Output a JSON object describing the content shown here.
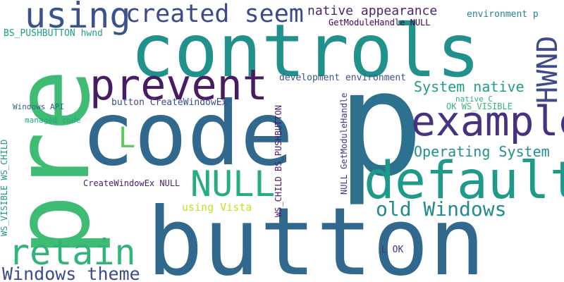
{
  "words": [
    {
      "text": "button",
      "color": "#31688e"
    },
    {
      "text": "code",
      "color": "#30688e"
    },
    {
      "text": "p",
      "color": "#2c728e"
    },
    {
      "text": "pre",
      "color": "#3fbc73"
    },
    {
      "text": "controls",
      "color": "#21918c"
    },
    {
      "text": "default",
      "color": "#1f9a8a"
    },
    {
      "text": "example",
      "color": "#46327e"
    },
    {
      "text": "prevent",
      "color": "#471c63"
    },
    {
      "text": "using",
      "color": "#3b528b"
    },
    {
      "text": "created seem",
      "color": "#3e4989"
    },
    {
      "text": "retain",
      "color": "#2fb47c"
    },
    {
      "text": "NULL",
      "color": "#26ad81"
    },
    {
      "text": "HWND",
      "color": "#3e4a89"
    },
    {
      "text": "Windows theme",
      "color": "#3e4a89"
    },
    {
      "text": "old Windows",
      "color": "#238a8d"
    },
    {
      "text": "Operating System",
      "color": "#21908d"
    },
    {
      "text": "System native",
      "color": "#1f9d8a"
    },
    {
      "text": "native appearance",
      "color": "#482576"
    },
    {
      "text": "L",
      "color": "#5ec962"
    },
    {
      "text": "environment p",
      "color": "#26828e"
    },
    {
      "text": "BS_PUSHBUTTON hwnd",
      "color": "#1fa088"
    },
    {
      "text": "GetModuleHandle NULL",
      "color": "#440154"
    },
    {
      "text": "development environment",
      "color": "#3b528b"
    },
    {
      "text": "button CreateWindowEx",
      "color": "#3e4989"
    },
    {
      "text": "Windows API",
      "color": "#33638d"
    },
    {
      "text": "managed code",
      "color": "#22a785"
    },
    {
      "text": "native C",
      "color": "#29af7f"
    },
    {
      "text": "OK WS_VISIBLE",
      "color": "#35b779"
    },
    {
      "text": "CreateWindowEx NULL",
      "color": "#482173"
    },
    {
      "text": "using Vista",
      "color": "#c8e020"
    },
    {
      "text": "L OK",
      "color": "#46337e"
    },
    {
      "text": "WS_VISIBLE WS_CHILD",
      "color": "#1f958b"
    },
    {
      "text": "WS_CHILD BS_PUSHBUTTON",
      "color": "#481a6c"
    },
    {
      "text": "NULL GetModuleHandle",
      "color": "#453781"
    }
  ]
}
